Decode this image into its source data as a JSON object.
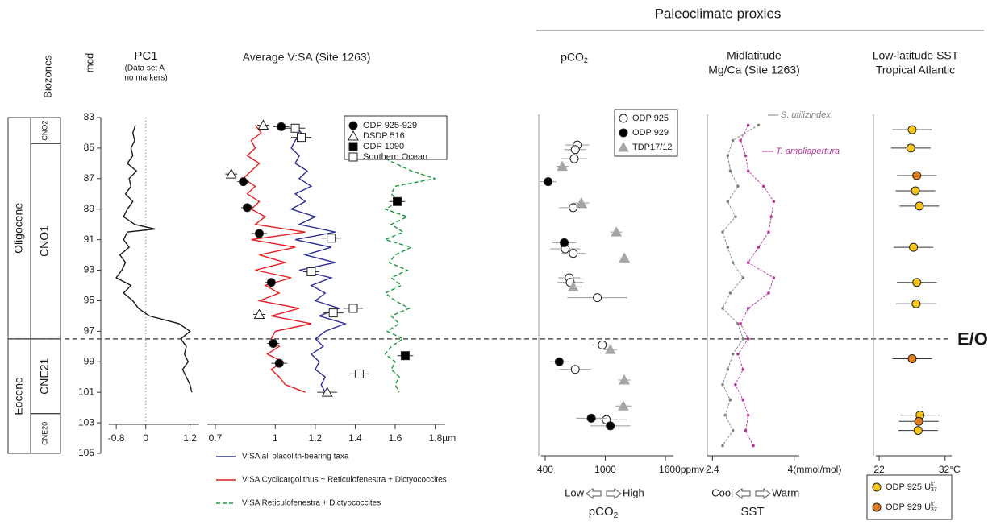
{
  "header": {
    "title": "Paleoclimate proxies"
  },
  "depth_axis": {
    "label": "mcd",
    "ylim": [
      83,
      105
    ],
    "yticks": [
      83,
      85,
      87,
      89,
      91,
      93,
      95,
      97,
      99,
      101,
      103,
      105
    ],
    "y_inverted": true
  },
  "biozones": {
    "label": "Biozones",
    "epochs": [
      {
        "name": "Oligocene",
        "top": 83,
        "base": 97.5
      },
      {
        "name": "Eocene",
        "top": 97.5,
        "base": 105
      }
    ],
    "zones": [
      {
        "name": "CNO2",
        "top": 83,
        "base": 84.7
      },
      {
        "name": "CNO1",
        "top": 84.7,
        "base": 97.5
      },
      {
        "name": "CNE21",
        "top": 97.5,
        "base": 102.4
      },
      {
        "name": "CNE20",
        "top": 102.4,
        "base": 105
      }
    ]
  },
  "boundary": {
    "label": "E/O",
    "depth": 97.5
  },
  "chart_data": [
    {
      "type": "line",
      "title": [
        "PC1",
        "(Data set A-",
        "no markers)"
      ],
      "xlim": [
        -1.0,
        1.45
      ],
      "xticks": [
        -0.8,
        0,
        1.2
      ],
      "reference_line": 0,
      "series": [
        {
          "name": null,
          "color": "#1a1a1a",
          "marker": "line",
          "depth": [
            83.5,
            84,
            84.5,
            85,
            85.5,
            86,
            86.5,
            87,
            87.5,
            88,
            88.5,
            89,
            89.5,
            90,
            90.3,
            90.5,
            91,
            91.5,
            92,
            92.5,
            93,
            93.5,
            94,
            94.5,
            95,
            95.5,
            96,
            96.5,
            97,
            97.5,
            98,
            98.5,
            99,
            99.5,
            100,
            100.5,
            101
          ],
          "values": [
            -0.28,
            -0.35,
            -0.3,
            -0.4,
            -0.35,
            -0.5,
            -0.25,
            -0.45,
            -0.4,
            -0.55,
            -0.35,
            -0.5,
            -0.6,
            -0.3,
            0.25,
            -0.5,
            -0.6,
            -0.45,
            -0.7,
            -0.55,
            -0.65,
            -0.8,
            -0.4,
            -0.6,
            -0.35,
            -0.2,
            0.1,
            0.9,
            1.2,
            0.95,
            1.1,
            1.05,
            1.15,
            1.0,
            1.1,
            1.2,
            1.25
          ]
        }
      ]
    },
    {
      "type": "line",
      "title": [
        "Average V:SA (Site 1263)"
      ],
      "xlim": [
        0.66,
        1.85
      ],
      "xticks": [
        0.7,
        1,
        1.2,
        1.4,
        1.6,
        {
          "value": 1.8,
          "label": "1.8µm"
        }
      ],
      "series": [
        {
          "name": "V:SA all placolith-bearing taxa",
          "color": "#2e3192",
          "marker": "line",
          "depth": [
            83.5,
            84,
            84.5,
            85,
            85.5,
            86,
            86.5,
            87,
            87.5,
            88,
            88.5,
            89,
            89.5,
            90,
            90.5,
            91,
            91.5,
            92,
            92.5,
            93,
            93.5,
            94,
            94.5,
            95,
            95.5,
            96,
            96.5,
            97,
            97.5,
            98,
            98.5,
            99,
            99.5,
            100,
            100.5,
            101
          ],
          "values": [
            1.1,
            1.13,
            1.1,
            1.08,
            1.12,
            1.1,
            1.16,
            1.12,
            1.18,
            1.1,
            1.15,
            1.08,
            1.2,
            1.12,
            1.3,
            1.1,
            1.28,
            1.15,
            1.3,
            1.12,
            1.28,
            1.18,
            1.25,
            1.2,
            1.32,
            1.22,
            1.35,
            1.25,
            1.2,
            1.24,
            1.18,
            1.22,
            1.2,
            1.25,
            1.23,
            1.25
          ]
        },
        {
          "name": "V:SA Cyclicargolithus + Reticulofenestra + Dictyococcites",
          "color": "#e31e24",
          "marker": "line",
          "depth": [
            83.5,
            84,
            84.5,
            85,
            85.5,
            86,
            86.5,
            87,
            87.5,
            88,
            88.5,
            89,
            89.5,
            90,
            90.5,
            91,
            91.5,
            92,
            92.5,
            93,
            93.5,
            94,
            94.5,
            95,
            95.5,
            96,
            96.5,
            97,
            97.5,
            98,
            98.5,
            99,
            99.5,
            100,
            100.5,
            101
          ],
          "values": [
            0.9,
            0.93,
            0.88,
            0.9,
            0.86,
            0.92,
            0.88,
            0.84,
            0.9,
            0.86,
            0.92,
            0.88,
            0.95,
            0.9,
            1.15,
            0.88,
            1.1,
            0.92,
            1.05,
            0.9,
            1.08,
            0.95,
            1.02,
            0.92,
            1.12,
            0.98,
            1.18,
            1.0,
            0.98,
            1.02,
            0.96,
            1.04,
            0.98,
            1.02,
            1.05,
            1.15
          ]
        },
        {
          "name": "V:SA Reticulofenestra + Dictyococcites",
          "color": "#1a9641",
          "marker": "dashed",
          "depth": [
            83.5,
            84,
            84.5,
            85,
            85.5,
            86,
            86.5,
            87,
            87.5,
            88,
            88.5,
            89,
            89.5,
            90,
            90.5,
            91,
            91.5,
            92,
            92.5,
            93,
            93.5,
            94,
            94.5,
            95,
            95.5,
            96,
            96.5,
            97,
            97.5,
            98,
            98.5,
            99,
            99.5,
            100,
            100.5,
            101
          ],
          "values": [
            null,
            null,
            1.62,
            1.58,
            1.52,
            1.6,
            1.68,
            1.8,
            1.6,
            1.58,
            1.62,
            1.55,
            1.66,
            1.58,
            1.64,
            1.55,
            1.68,
            1.6,
            1.57,
            1.66,
            1.58,
            1.63,
            1.55,
            1.6,
            1.67,
            1.58,
            1.62,
            1.56,
            1.64,
            1.58,
            1.55,
            1.6,
            1.58,
            1.62,
            1.6,
            1.62
          ]
        },
        {
          "name": "ODP 925-929",
          "color": "#000000",
          "marker": "circle-filled",
          "depth": [
            83.6,
            87.2,
            88.9,
            90.6,
            93.8,
            97.8,
            99.1
          ],
          "values": [
            1.03,
            0.84,
            0.86,
            0.92,
            0.98,
            0.99,
            1.02
          ],
          "errors": [
            0.04,
            0.03,
            0.03,
            0.04,
            0.03,
            0.03,
            0.04
          ]
        },
        {
          "name": "DSDP 516",
          "color": "#000000",
          "marker": "triangle-open",
          "depth": [
            83.5,
            86.7,
            95.9,
            101.0
          ],
          "values": [
            0.94,
            0.78,
            0.92,
            1.26
          ],
          "errors": [
            0.03,
            0.03,
            0.03,
            0.05
          ]
        },
        {
          "name": "ODP 1090",
          "color": "#000000",
          "marker": "square-filled",
          "depth": [
            88.5,
            98.6
          ],
          "values": [
            1.61,
            1.65
          ],
          "errors": [
            0.04,
            0.04
          ]
        },
        {
          "name": "Southern Ocean",
          "color": "#000000",
          "marker": "square-open",
          "depth": [
            83.7,
            84.3,
            90.9,
            93.1,
            95.8,
            95.5,
            99.8
          ],
          "values": [
            1.1,
            1.13,
            1.28,
            1.18,
            1.29,
            1.39,
            1.42
          ],
          "errors": [
            0.05,
            0.05,
            0.05,
            0.04,
            0.05,
            0.05,
            0.05
          ]
        }
      ]
    },
    {
      "type": "scatter",
      "title": [
        "pCO"
      ],
      "title_sub": "2",
      "xlim": [
        360,
        1680
      ],
      "xticks": [
        400,
        1000,
        {
          "value": 1600,
          "label": "1600ppmv"
        }
      ],
      "scale_labels": [
        "Low",
        "High"
      ],
      "bottom_label": "pCO",
      "bottom_label_sub": "2",
      "series": [
        {
          "name": "ODP 925",
          "color": "#000000",
          "marker": "circle-open",
          "depth": [
            84.8,
            85.1,
            85.7,
            88.9,
            91.6,
            91.9,
            93.5,
            93.8,
            94.8,
            97.9,
            99.5,
            102.8
          ],
          "values": [
            720,
            700,
            690,
            680,
            600,
            680,
            640,
            650,
            920,
            970,
            700,
            1010
          ],
          "errors": [
            120,
            110,
            130,
            140,
            150,
            120,
            110,
            130,
            300,
            100,
            160,
            200
          ]
        },
        {
          "name": "ODP 929",
          "color": "#000000",
          "marker": "circle-filled",
          "depth": [
            87.2,
            91.2,
            99.0,
            102.7,
            103.2
          ],
          "values": [
            430,
            590,
            540,
            860,
            1050
          ],
          "errors": [
            80,
            120,
            100,
            150,
            200
          ]
        },
        {
          "name": "TDP17/12",
          "color": "#a6a6a6",
          "marker": "triangle-filled",
          "depth": [
            86.2,
            88.6,
            90.5,
            92.2,
            94.1,
            98.2,
            100.2,
            101.9
          ],
          "values": [
            570,
            760,
            1110,
            1190,
            680,
            1050,
            1190,
            1180
          ],
          "errors": [
            60,
            80,
            60,
            60,
            80,
            70,
            60,
            80
          ]
        }
      ]
    },
    {
      "type": "line",
      "title": [
        "Midlatitude",
        "Mg/Ca (Site 1263)"
      ],
      "xlim": [
        2.3,
        4.1
      ],
      "xticks": [
        2.4,
        {
          "value": 4,
          "label": "4(mmol/mol)"
        }
      ],
      "scale_labels": [
        "Cool",
        "Warm"
      ],
      "bottom_label": "SST",
      "series": [
        {
          "name": "S. utilizindex",
          "color": "#808080",
          "marker": "line-dots",
          "depth": [
            83.5,
            84.5,
            85.5,
            86.5,
            87.5,
            88.5,
            89.5,
            90.5,
            91.5,
            92.5,
            93.5,
            94.5,
            95.5,
            96.5,
            97.5,
            98.5,
            99.5,
            100.5,
            101.5,
            102.5,
            103.5,
            104.5
          ],
          "values": [
            3.3,
            2.8,
            2.7,
            2.75,
            2.9,
            2.7,
            2.85,
            2.6,
            2.7,
            2.8,
            3.0,
            2.75,
            2.6,
            2.9,
            3.0,
            2.8,
            2.7,
            2.6,
            2.75,
            2.65,
            2.8,
            2.6
          ]
        },
        {
          "name": "T. ampliapertura",
          "color": "#b5359c",
          "marker": "line-dots",
          "depth": [
            83.5,
            84.5,
            85.5,
            86.5,
            87.5,
            88.5,
            89.5,
            90.5,
            91.5,
            92.5,
            93.5,
            94.5,
            95.5,
            96.5,
            97.5,
            98.5,
            99.5,
            100.5,
            101.5,
            102.5,
            103.5,
            104.5
          ],
          "values": [
            3.1,
            2.95,
            3.05,
            3.1,
            3.4,
            3.6,
            3.55,
            3.5,
            3.3,
            3.1,
            3.6,
            3.5,
            3.1,
            2.95,
            3.1,
            2.9,
            3.0,
            2.85,
            3.0,
            3.1,
            3.05,
            3.2
          ]
        }
      ]
    },
    {
      "type": "scatter",
      "title": [
        "Low-latitude SST",
        "Tropical Atlantic"
      ],
      "xlim": [
        21.5,
        33
      ],
      "xticks": [
        22,
        {
          "value": 32,
          "label": "32°C"
        }
      ],
      "series": [
        {
          "name": "ODP 925 U",
          "name_sup": "k'",
          "name_sub": "37",
          "color": "#f5c518",
          "marker": "circle-filled",
          "depth": [
            83.8,
            85.0,
            87.8,
            88.8,
            91.5,
            93.8,
            95.2,
            102.5,
            103.5
          ],
          "values": [
            27.0,
            26.8,
            27.5,
            28.1,
            27.2,
            27.7,
            27.6,
            28.2,
            27.9
          ],
          "errors": [
            3,
            3,
            3,
            3,
            3,
            3,
            3,
            3,
            3
          ]
        },
        {
          "name": "ODP 929 U",
          "name_sup": "k'",
          "name_sub": "37",
          "color": "#e07b1a",
          "marker": "circle-filled",
          "depth": [
            86.8,
            98.8,
            102.9
          ],
          "values": [
            27.7,
            27.0,
            28.0
          ],
          "errors": [
            3,
            3,
            3
          ]
        }
      ]
    }
  ]
}
